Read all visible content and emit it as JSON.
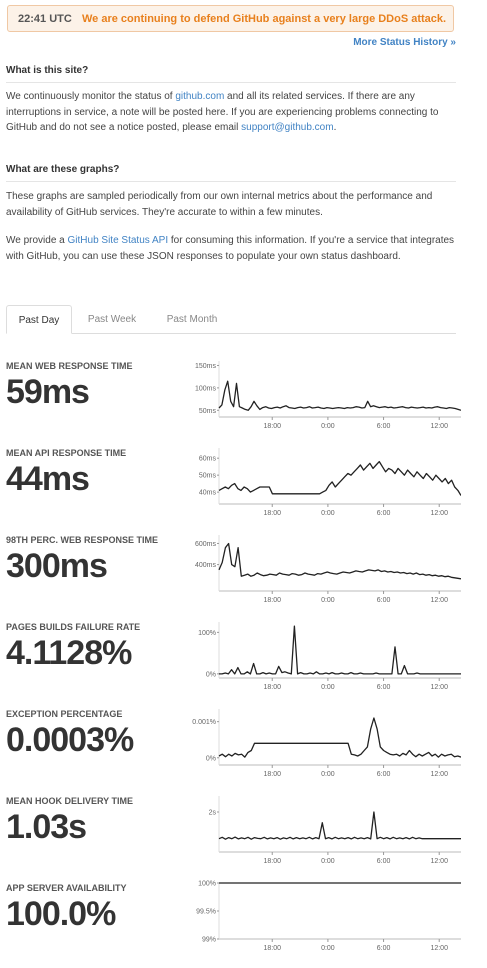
{
  "banner": {
    "time": "22:41 UTC",
    "message": "We are continuing to defend GitHub against a very large DDoS attack."
  },
  "history_link": "More Status History »",
  "about": {
    "title": "What is this site?",
    "p1_a": "We continuously monitor the status of ",
    "p1_link": "github.com",
    "p1_b": " and all its related services. If there are any interruptions in service, a note will be posted here. If you are experiencing problems connecting to GitHub and do not see a notice posted, please email ",
    "p1_email": "support@github.com",
    "p1_c": "."
  },
  "graphs": {
    "title": "What are these graphs?",
    "p1": "These graphs are sampled periodically from our own internal metrics about the performance and availability of GitHub services. They're accurate to within a few minutes.",
    "p2_a": "We provide a ",
    "p2_link": "GitHub Site Status API",
    "p2_b": " for consuming this information. If you're a service that integrates with GitHub, you can use these JSON responses to populate your own status dashboard."
  },
  "tabs": [
    "Past Day",
    "Past Week",
    "Past Month"
  ],
  "metrics": [
    {
      "label": "MEAN WEB RESPONSE TIME",
      "value": "59ms"
    },
    {
      "label": "MEAN API RESPONSE TIME",
      "value": "44ms"
    },
    {
      "label": "98TH PERC. WEB RESPONSE TIME",
      "value": "300ms"
    },
    {
      "label": "PAGES BUILDS FAILURE RATE",
      "value": "4.1128%"
    },
    {
      "label": "EXCEPTION PERCENTAGE",
      "value": "0.0003%"
    },
    {
      "label": "MEAN HOOK DELIVERY TIME",
      "value": "1.03s"
    },
    {
      "label": "APP SERVER AVAILABILITY",
      "value": "100.0%"
    }
  ],
  "chart_data": [
    {
      "type": "line",
      "title": "MEAN WEB RESPONSE TIME",
      "x_ticks": [
        "18:00",
        "0:00",
        "6:00",
        "12:00"
      ],
      "y_ticks": [
        "150ms",
        "100ms",
        "50ms"
      ],
      "ylim": [
        35,
        160
      ],
      "values": [
        55,
        62,
        95,
        115,
        70,
        58,
        110,
        58,
        55,
        52,
        50,
        58,
        70,
        60,
        52,
        56,
        58,
        55,
        54,
        56,
        57,
        55,
        58,
        60,
        56,
        55,
        54,
        56,
        57,
        55,
        56,
        58,
        55,
        56,
        57,
        55,
        54,
        56,
        55,
        54,
        55,
        56,
        55,
        54,
        56,
        55,
        56,
        58,
        57,
        55,
        56,
        70,
        58,
        60,
        58,
        56,
        57,
        58,
        56,
        57,
        55,
        56,
        57,
        58,
        56,
        55,
        57,
        56,
        55,
        56,
        57,
        55,
        56,
        55,
        57,
        58,
        56,
        55,
        54,
        56,
        55,
        54,
        52,
        50
      ]
    },
    {
      "type": "line",
      "title": "MEAN API RESPONSE TIME",
      "x_ticks": [
        "18:00",
        "0:00",
        "6:00",
        "12:00"
      ],
      "y_ticks": [
        "60ms",
        "50ms",
        "40ms"
      ],
      "ylim": [
        33,
        66
      ],
      "values": [
        41,
        42,
        43,
        42,
        44,
        45,
        42,
        41,
        43,
        42,
        40,
        41,
        42,
        43,
        43,
        43,
        43,
        39,
        39,
        39,
        39,
        39,
        39,
        39,
        39,
        39,
        39,
        39,
        39,
        39,
        39,
        39,
        39,
        40,
        41,
        44,
        46,
        43,
        45,
        47,
        49,
        51,
        50,
        52,
        54,
        56,
        53,
        55,
        57,
        54,
        56,
        58,
        55,
        52,
        54,
        53,
        51,
        54,
        52,
        50,
        53,
        51,
        49,
        52,
        50,
        48,
        51,
        49,
        47,
        50,
        48,
        46,
        48,
        45,
        47,
        43,
        41,
        38
      ]
    },
    {
      "type": "line",
      "title": "98TH PERC. WEB RESPONSE TIME",
      "x_ticks": [
        "18:00",
        "0:00",
        "6:00",
        "12:00"
      ],
      "y_ticks": [
        "600ms",
        "400ms"
      ],
      "ylim": [
        150,
        680
      ],
      "values": [
        350,
        420,
        560,
        600,
        400,
        380,
        560,
        290,
        300,
        310,
        290,
        300,
        320,
        305,
        295,
        300,
        310,
        305,
        300,
        320,
        310,
        305,
        300,
        315,
        310,
        300,
        305,
        320,
        310,
        305,
        300,
        315,
        310,
        320,
        330,
        320,
        315,
        310,
        320,
        330,
        325,
        320,
        330,
        340,
        335,
        330,
        340,
        350,
        345,
        340,
        350,
        335,
        340,
        330,
        335,
        325,
        330,
        320,
        325,
        315,
        320,
        310,
        320,
        305,
        310,
        300,
        305,
        295,
        300,
        290,
        295,
        285,
        290,
        280,
        275,
        270,
        265
      ]
    },
    {
      "type": "line",
      "title": "PAGES BUILDS FAILURE RATE",
      "x_ticks": [
        "18:00",
        "0:00",
        "6:00",
        "12:00"
      ],
      "y_ticks": [
        "100%",
        "0%"
      ],
      "ylim": [
        -10,
        125
      ],
      "values": [
        0,
        0,
        2,
        0,
        10,
        0,
        15,
        0,
        0,
        5,
        0,
        25,
        0,
        0,
        3,
        0,
        2,
        0,
        0,
        18,
        3,
        5,
        2,
        0,
        115,
        0,
        3,
        0,
        0,
        2,
        0,
        5,
        0,
        0,
        2,
        0,
        3,
        0,
        0,
        2,
        0,
        0,
        3,
        0,
        0,
        2,
        0,
        0,
        0,
        0,
        2,
        0,
        0,
        0,
        0,
        0,
        65,
        0,
        0,
        20,
        0,
        0,
        0,
        2,
        0,
        0,
        0,
        0,
        0,
        0,
        0,
        0,
        0,
        0,
        0,
        0,
        0,
        0
      ]
    },
    {
      "type": "line",
      "title": "EXCEPTION PERCENTAGE",
      "x_ticks": [
        "18:00",
        "0:00",
        "6:00",
        "12:00"
      ],
      "y_ticks": [
        "0.001%",
        "0%"
      ],
      "ylim": [
        -0.0002,
        0.00135
      ],
      "values": [
        5e-05,
        0.0001,
        3e-05,
        0.0001,
        5e-05,
        0.00012,
        8e-05,
        0.0001,
        2e-05,
        0.00015,
        0.0002,
        0.0004,
        0.0004,
        0.0004,
        0.0004,
        0.0004,
        0.0004,
        0.0004,
        0.0004,
        0.0004,
        0.0004,
        0.0004,
        0.0004,
        0.0004,
        0.0004,
        0.0004,
        0.0004,
        0.0004,
        0.0004,
        0.0004,
        0.0004,
        0.0004,
        0.0004,
        0.0004,
        0.0004,
        0.0004,
        0.0004,
        0.0004,
        0.0004,
        0.0004,
        0.0004,
        0.0001,
        8e-05,
        5e-05,
        0.0001,
        0.0002,
        0.0003,
        0.0008,
        0.0011,
        0.0008,
        0.0003,
        0.0002,
        0.00015,
        0.0001,
        8e-05,
        0.0001,
        5e-05,
        0.00012,
        8e-05,
        0.0002,
        0.0001,
        3e-05,
        0.0001,
        5e-05,
        0.0001,
        0.00015,
        5e-05,
        0.0001,
        2e-05,
        0.0001,
        5e-05,
        8e-05,
        0.0001,
        3e-05,
        5e-05,
        2e-05
      ]
    },
    {
      "type": "line",
      "title": "MEAN HOOK DELIVERY TIME",
      "x_ticks": [
        "18:00",
        "0:00",
        "6:00",
        "12:00"
      ],
      "y_ticks": [
        "2s"
      ],
      "ylim": [
        0.5,
        2.6
      ],
      "values": [
        1.0,
        1.05,
        0.98,
        1.04,
        1.0,
        1.06,
        0.99,
        1.03,
        1.0,
        1.05,
        0.98,
        1.04,
        1.01,
        1.0,
        1.05,
        0.99,
        1.03,
        1.0,
        1.04,
        0.98,
        1.03,
        1.0,
        1.05,
        0.99,
        1.04,
        1.0,
        1.03,
        1.0,
        1.05,
        0.99,
        1.04,
        1.0,
        1.6,
        1.0,
        1.04,
        0.99,
        1.05,
        1.0,
        1.03,
        1.0,
        1.04,
        0.99,
        1.05,
        1.0,
        1.03,
        1.0,
        1.04,
        0.99,
        2.0,
        1.0,
        1.05,
        1.0,
        1.04,
        0.99,
        1.05,
        1.0,
        1.03,
        1.0,
        1.04,
        0.99,
        1.05,
        1.0,
        1.03,
        1.0,
        1.0,
        1.0,
        1.0,
        1.0,
        1.0,
        1.0,
        1.0,
        1.0,
        1.0,
        1.0,
        1.0,
        1.0
      ]
    },
    {
      "type": "line",
      "title": "APP SERVER AVAILABILITY",
      "x_ticks": [
        "18:00",
        "0:00",
        "6:00",
        "12:00"
      ],
      "y_ticks": [
        "100%",
        "99.5%",
        "99%"
      ],
      "ylim": [
        99,
        100
      ],
      "values": [
        100,
        100,
        100,
        100,
        100,
        100,
        100,
        100,
        100,
        100
      ]
    }
  ],
  "colors": {
    "link": "#4183c4",
    "banner_text": "#e8801d",
    "line": "#222222"
  }
}
